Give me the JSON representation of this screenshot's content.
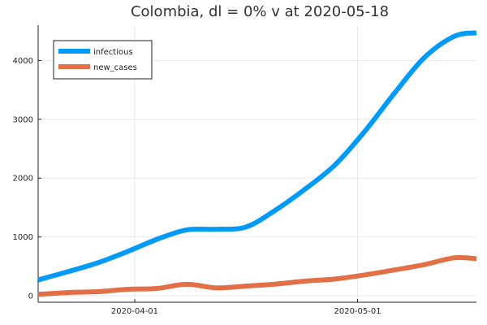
{
  "chart_data": {
    "type": "line",
    "title": "Colombia,  dl = 0% v at 2020-05-18",
    "xlabel": "",
    "ylabel": "",
    "x_axis": {
      "type": "date",
      "range": [
        "2020-03-19",
        "2020-05-17"
      ],
      "ticks": [
        "2020-04-01",
        "2020-05-01"
      ]
    },
    "y_axis": {
      "range": [
        -110,
        4600
      ],
      "ticks": [
        0,
        1000,
        2000,
        3000,
        4000
      ]
    },
    "grid": true,
    "legend": {
      "placement": "top-left"
    },
    "series": [
      {
        "name": "infectious",
        "color": "#009af9",
        "x": [
          "2020-03-19",
          "2020-03-23",
          "2020-03-27",
          "2020-03-31",
          "2020-04-04",
          "2020-04-08",
          "2020-04-12",
          "2020-04-16",
          "2020-04-20",
          "2020-04-24",
          "2020-04-28",
          "2020-05-02",
          "2020-05-06",
          "2020-05-10",
          "2020-05-14",
          "2020-05-17"
        ],
        "y": [
          270,
          410,
          560,
          750,
          960,
          1120,
          1130,
          1170,
          1460,
          1820,
          2230,
          2800,
          3450,
          4050,
          4410,
          4470
        ]
      },
      {
        "name": "new_cases",
        "color": "#e26f46",
        "x": [
          "2020-03-19",
          "2020-03-23",
          "2020-03-27",
          "2020-03-31",
          "2020-04-04",
          "2020-04-08",
          "2020-04-12",
          "2020-04-16",
          "2020-04-20",
          "2020-04-24",
          "2020-04-28",
          "2020-05-02",
          "2020-05-06",
          "2020-05-10",
          "2020-05-14",
          "2020-05-17"
        ],
        "y": [
          25,
          55,
          70,
          110,
          125,
          195,
          135,
          165,
          200,
          250,
          285,
          355,
          440,
          530,
          645,
          630
        ]
      }
    ]
  }
}
